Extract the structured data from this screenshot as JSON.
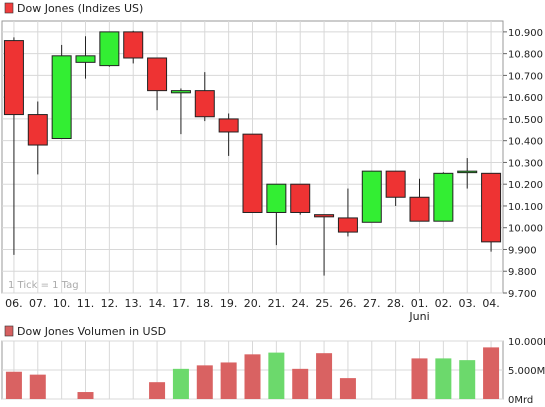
{
  "main_legend": {
    "label": "Dow Jones (Indizes US)",
    "color": "#f03c3c"
  },
  "volume_legend": {
    "label": "Dow Jones Volumen in USD",
    "color": "#d66060"
  },
  "tick_note": "1 Tick = 1 Tag",
  "colors": {
    "up": "#33ee33",
    "down": "#ee3333",
    "vol_up": "#6cd96c",
    "vol_down": "#d96262",
    "grid": "#d8d8d8"
  },
  "chart_data": [
    {
      "type": "candlestick",
      "title": "Dow Jones (Indizes US)",
      "categories": [
        "06.",
        "07.",
        "10.",
        "11.",
        "12.",
        "13.",
        "14.",
        "17.",
        "18.",
        "19.",
        "20.",
        "21.",
        "24.",
        "25.",
        "26.",
        "27.",
        "28.",
        "01.",
        "02.",
        "03.",
        "04."
      ],
      "month_label": "Juni",
      "month_label_index": 17,
      "y_ticks": [
        "10.900",
        "10.800",
        "10.700",
        "10.600",
        "10.500",
        "10.400",
        "10.300",
        "10.200",
        "10.100",
        "10.000",
        "9.900",
        "9.800",
        "9.700"
      ],
      "ylim": [
        9700,
        10950
      ],
      "ohlc": [
        [
          10860,
          10875,
          9875,
          10520
        ],
        [
          10520,
          10580,
          10245,
          10380
        ],
        [
          10410,
          10840,
          10410,
          10790
        ],
        [
          10760,
          10880,
          10685,
          10790
        ],
        [
          10745,
          10900,
          10740,
          10900
        ],
        [
          10900,
          10905,
          10755,
          10780
        ],
        [
          10780,
          10780,
          10540,
          10630
        ],
        [
          10620,
          10640,
          10430,
          10630
        ],
        [
          10630,
          10715,
          10490,
          10510
        ],
        [
          10500,
          10525,
          10330,
          10440
        ],
        [
          10430,
          10430,
          10070,
          10070
        ],
        [
          10070,
          10200,
          9920,
          10200
        ],
        [
          10200,
          10200,
          10060,
          10070
        ],
        [
          10060,
          10060,
          9780,
          10050
        ],
        [
          10045,
          10180,
          9960,
          9980
        ],
        [
          10025,
          10260,
          10025,
          10260
        ],
        [
          10260,
          10260,
          10100,
          10140
        ],
        [
          10140,
          10225,
          10030,
          10030
        ],
        [
          10030,
          10255,
          10030,
          10250
        ],
        [
          10260,
          10320,
          10180,
          10260
        ],
        [
          10250,
          10250,
          9890,
          9935
        ]
      ]
    },
    {
      "type": "bar",
      "title": "Dow Jones Volumen in USD",
      "categories": [
        "06.",
        "07.",
        "10.",
        "11.",
        "12.",
        "13.",
        "14.",
        "17.",
        "18.",
        "19.",
        "20.",
        "21.",
        "24.",
        "25.",
        "26.",
        "27.",
        "28.",
        "01.",
        "02.",
        "03.",
        "04."
      ],
      "y_ticks": [
        "10.000Mrd",
        "5.000Mrd",
        "0Mrd"
      ],
      "ylim": [
        0,
        10000
      ],
      "unit": "Mrd",
      "values": [
        4700,
        4200,
        0,
        1200,
        0,
        0,
        2900,
        5200,
        5800,
        6300,
        7700,
        8000,
        5200,
        7900,
        3600,
        0,
        0,
        7000,
        7000,
        6700,
        8900
      ],
      "direction": [
        "down",
        "down",
        "up",
        "down",
        "up",
        "down",
        "down",
        "up",
        "down",
        "down",
        "down",
        "up",
        "down",
        "down",
        "down",
        "up",
        "down",
        "down",
        "up",
        "up",
        "down"
      ]
    }
  ]
}
